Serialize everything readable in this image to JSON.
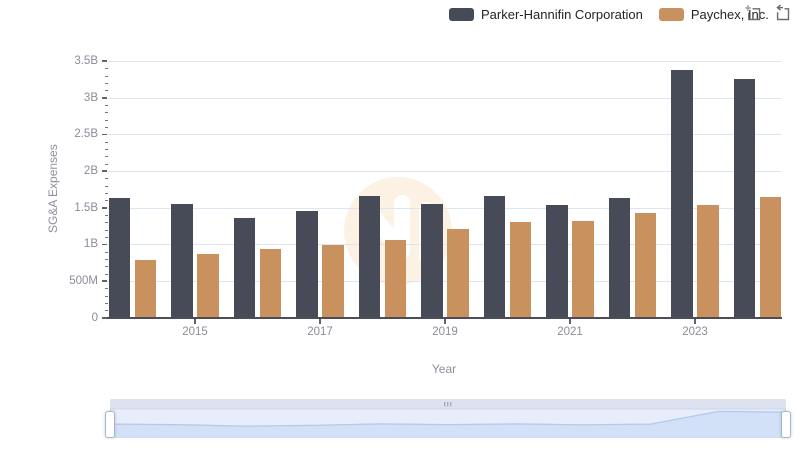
{
  "legend": {
    "items": [
      {
        "label": "Parker-Hannifin Corporation",
        "color": "#474a57"
      },
      {
        "label": "Paychex, Inc.",
        "color": "#c8915e"
      }
    ]
  },
  "toolbar": {
    "zoom_icon": "data-zoom-select-icon",
    "restore_icon": "zoom-restore-icon"
  },
  "chart_data": {
    "type": "bar",
    "title": "",
    "xlabel": "Year",
    "ylabel": "SG&A Expenses",
    "unit": "USD (B = billions, M = millions)",
    "categories": [
      2014,
      2015,
      2016,
      2017,
      2018,
      2019,
      2020,
      2021,
      2022,
      2023,
      2024
    ],
    "series": [
      {
        "name": "Parker-Hannifin Corporation",
        "color": "#474a57",
        "values_billions": [
          1.63,
          1.55,
          1.36,
          1.45,
          1.66,
          1.55,
          1.66,
          1.53,
          1.63,
          3.38,
          3.26
        ]
      },
      {
        "name": "Paychex, Inc.",
        "color": "#c8915e",
        "values_billions": [
          0.79,
          0.87,
          0.94,
          0.99,
          1.06,
          1.21,
          1.3,
          1.32,
          1.42,
          1.53,
          1.64
        ]
      }
    ],
    "ylim": [
      0,
      3.5
    ],
    "y_axis": {
      "tick_labels": [
        "0",
        "500M",
        "1B",
        "1.5B",
        "2B",
        "2.5B",
        "3B",
        "3.5B"
      ],
      "tick_values_billions": [
        0,
        0.5,
        1,
        1.5,
        2,
        2.5,
        3,
        3.5
      ],
      "minor_ticks_per_interval": 4
    },
    "x_axis": {
      "tick_labels": [
        "2015",
        "2017",
        "2019",
        "2021",
        "2023"
      ],
      "tick_category_indices": [
        1,
        3,
        5,
        7,
        9
      ]
    },
    "grid": true,
    "legend_position": "top-right"
  },
  "navigator": {
    "shadow_series": "Parker-Hannifin Corporation",
    "range": "full",
    "colors": {
      "move_handle": "#dde2ee",
      "body": "#e7edfb",
      "area_fill": "#d2e0f8",
      "area_line": "#b4c8ec",
      "border": "#cdd7ec"
    }
  },
  "colors": {
    "grid_line": "#dde5f2",
    "axis_line": "#4c4d57",
    "tick_label": "#8b8d97",
    "axis_title": "#8e909c",
    "legend_text": "#24252b",
    "watermark": "#fcf2e4",
    "background": "#ffffff"
  }
}
